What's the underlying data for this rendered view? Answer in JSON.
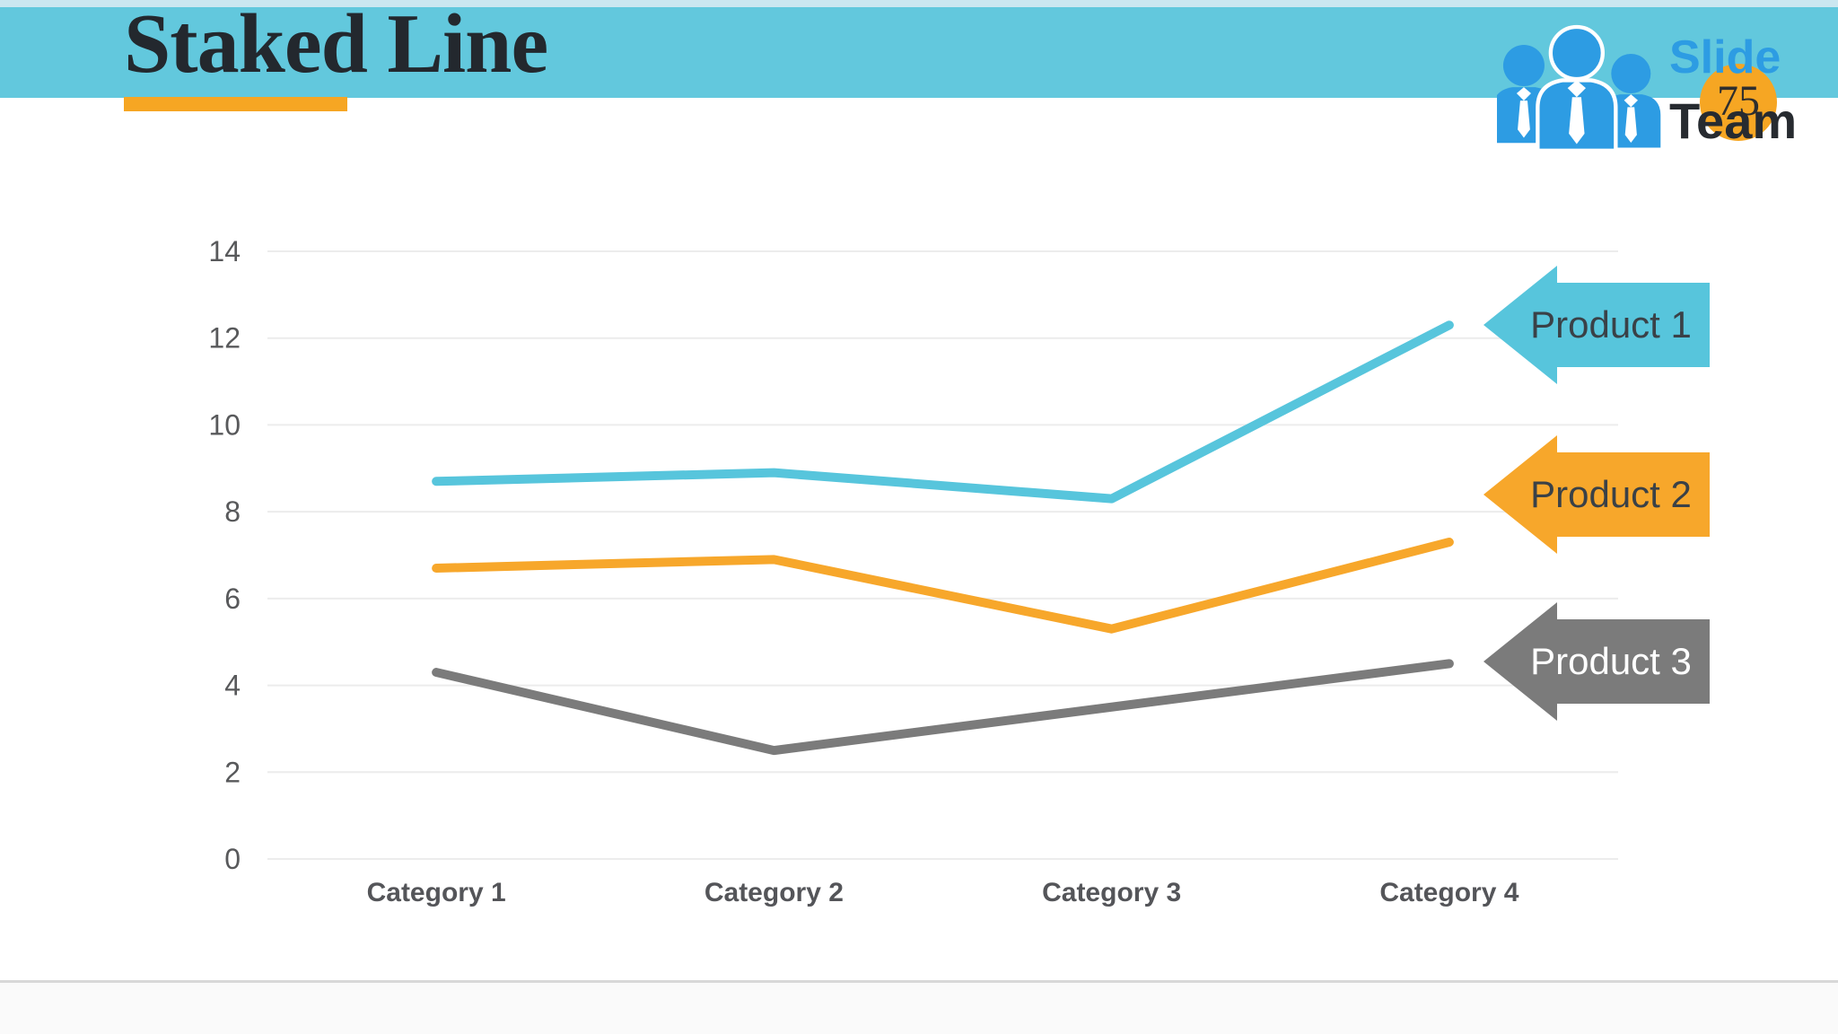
{
  "slide": {
    "title": "Staked Line"
  },
  "logo": {
    "brand_top": "Slide",
    "brand_bottom": "Team",
    "slide_number": "75"
  },
  "chart_data": {
    "type": "line",
    "title": "",
    "categories": [
      "Category 1",
      "Category 2",
      "Category 3",
      "Category 4"
    ],
    "series": [
      {
        "name": "Product 1",
        "color": "#57C5DC",
        "label_text_color": "#3A4147",
        "values": [
          8.7,
          8.9,
          8.3,
          12.3
        ]
      },
      {
        "name": "Product 2",
        "color": "#F7A72B",
        "label_text_color": "#3A4147",
        "values": [
          6.7,
          6.9,
          5.3,
          7.3
        ]
      },
      {
        "name": "Product 3",
        "color": "#7B7B7B",
        "label_text_color": "#FFFFFF",
        "values": [
          4.3,
          2.5,
          3.5,
          4.5
        ]
      }
    ],
    "xlabel": "",
    "ylabel": "",
    "ylim": [
      0,
      14
    ],
    "yticks": [
      0,
      2,
      4,
      6,
      8,
      10,
      12,
      14
    ],
    "grid": true,
    "legend_position": "right side, left-pointing arrow callouts aligned with line endpoints"
  },
  "colors": {
    "header_band": "#62C8DD",
    "header_strip": "#CBE7F0",
    "accent_orange": "#F6A623",
    "title_text": "#23282E",
    "logo_blue": "#2D9CE3",
    "logo_dark": "#272B30",
    "axis_text": "#58595B",
    "gridline": "#ECECEC",
    "footer_divider": "#D8D8D8"
  }
}
